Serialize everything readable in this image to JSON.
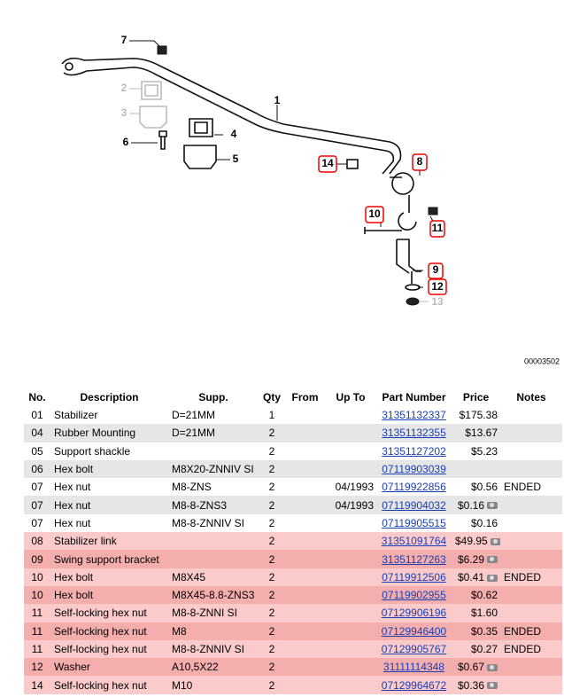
{
  "diagram": {
    "id": "00003502",
    "callouts": [
      {
        "label": "7"
      },
      {
        "label": "2"
      },
      {
        "label": "3"
      },
      {
        "label": "6"
      },
      {
        "label": "4"
      },
      {
        "label": "5"
      },
      {
        "label": "1"
      },
      {
        "label": "14"
      },
      {
        "label": "8"
      },
      {
        "label": "10"
      },
      {
        "label": "11"
      },
      {
        "label": "9"
      },
      {
        "label": "12"
      },
      {
        "label": "13"
      }
    ]
  },
  "table": {
    "columns": [
      "No.",
      "Description",
      "Supp.",
      "Qty",
      "From",
      "Up To",
      "Part Number",
      "Price",
      "Notes"
    ],
    "rows": [
      {
        "no": "01",
        "description": "Stabilizer",
        "supp": "D=21MM",
        "qty": "1",
        "part_number": "31351132337",
        "price": "$175.38"
      },
      {
        "no": "04",
        "description": "Rubber Mounting",
        "supp": "D=21MM",
        "qty": "2",
        "part_number": "31351132355",
        "price": "$13.67"
      },
      {
        "no": "05",
        "description": "Support shackle",
        "qty": "2",
        "part_number": "31351127202",
        "price": "$5.23"
      },
      {
        "no": "06",
        "description": "Hex bolt",
        "supp": "M8X20-ZNNIV SI",
        "qty": "2",
        "part_number": "07119903039"
      },
      {
        "no": "07",
        "description": "Hex nut",
        "supp": "M8-ZNS",
        "qty": "2",
        "up_to": "04/1993",
        "part_number": "07119922856",
        "price": "$0.56",
        "notes": "ENDED"
      },
      {
        "no": "07",
        "description": "Hex nut",
        "supp": "M8-8-ZNS3",
        "qty": "2",
        "up_to": "04/1993",
        "part_number": "07119904032",
        "price": "$0.16",
        "image": true
      },
      {
        "no": "07",
        "description": "Hex nut",
        "supp": "M8-8-ZNNIV SI",
        "qty": "2",
        "part_number": "07119905515",
        "price": "$0.16"
      },
      {
        "no": "08",
        "description": "Stabilizer link",
        "qty": "2",
        "part_number": "31351091764",
        "price": "$49.95",
        "image": true,
        "highlighted": true
      },
      {
        "no": "09",
        "description": "Swing support bracket",
        "qty": "2",
        "part_number": "31351127263",
        "price": "$6.29",
        "image": true,
        "highlighted": true
      },
      {
        "no": "10",
        "description": "Hex bolt",
        "supp": "M8X45",
        "qty": "2",
        "part_number": "07119912506",
        "price": "$0.41",
        "image": true,
        "notes": "ENDED",
        "highlighted": true
      },
      {
        "no": "10",
        "description": "Hex bolt",
        "supp": "M8X45-8.8-ZNS3",
        "qty": "2",
        "part_number": "07119902955",
        "price": "$0.62",
        "highlighted": true
      },
      {
        "no": "11",
        "description": "Self-locking hex nut",
        "supp": "M8-8-ZNNI SI",
        "qty": "2",
        "part_number": "07129906196",
        "price": "$1.60",
        "highlighted": true
      },
      {
        "no": "11",
        "description": "Self-locking hex nut",
        "supp": "M8",
        "qty": "2",
        "part_number": "07129946400",
        "price": "$0.35",
        "notes": "ENDED",
        "highlighted": true
      },
      {
        "no": "11",
        "description": "Self-locking hex nut",
        "supp": "M8-8-ZNNIV SI",
        "qty": "2",
        "part_number": "07129905767",
        "price": "$0.27",
        "notes": "ENDED",
        "highlighted": true
      },
      {
        "no": "12",
        "description": "Washer",
        "supp": "A10,5X22",
        "qty": "2",
        "part_number": "31111114348",
        "price": "$0.67",
        "image": true,
        "highlighted": true
      },
      {
        "no": "14",
        "description": "Self-locking hex nut",
        "supp": "M10",
        "qty": "2",
        "part_number": "07129964672",
        "price": "$0.36",
        "image": true,
        "highlighted": true
      }
    ]
  }
}
